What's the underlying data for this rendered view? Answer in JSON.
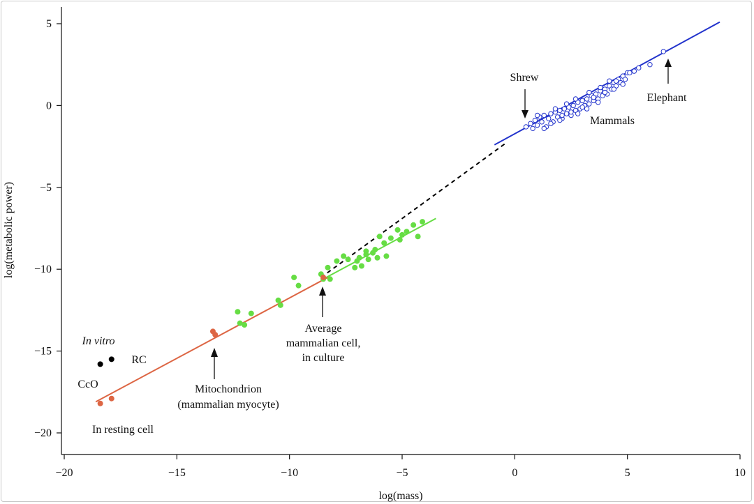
{
  "chart_data": {
    "type": "scatter",
    "title": "",
    "xlabel": "log(mass)",
    "ylabel": "log(metabolic power)",
    "xlim": [
      -20.5,
      10
    ],
    "ylim": [
      -21.3,
      5.7
    ],
    "x_ticks": [
      -20,
      -15,
      -10,
      -5,
      0,
      5,
      10
    ],
    "y_ticks": [
      5,
      0,
      -5,
      -10,
      -15,
      -20
    ],
    "x_tick_labels": [
      "−20",
      "−15",
      "−10",
      "−5",
      "0",
      "5",
      "10"
    ],
    "y_tick_labels": [
      "5",
      "0",
      "−5",
      "−10",
      "−15",
      "−20"
    ],
    "grid": false,
    "colors": {
      "mammals": "#2233cc",
      "cells": "#66dd44",
      "organelles": "#dd6644",
      "in_vitro": "#000000",
      "extrapolation": "#000000"
    },
    "series": [
      {
        "key": "mammals",
        "marker": "open-circle",
        "points": [
          [
            0.5,
            -1.3
          ],
          [
            0.7,
            -1.1
          ],
          [
            0.9,
            -0.9
          ],
          [
            1.0,
            -1.2
          ],
          [
            1.1,
            -0.7
          ],
          [
            1.2,
            -1.0
          ],
          [
            1.3,
            -0.6
          ],
          [
            1.4,
            -1.3
          ],
          [
            1.5,
            -0.8
          ],
          [
            1.6,
            -0.5
          ],
          [
            1.7,
            -1.0
          ],
          [
            1.8,
            -0.4
          ],
          [
            1.9,
            -0.7
          ],
          [
            2.0,
            -0.3
          ],
          [
            2.1,
            -0.8
          ],
          [
            2.2,
            -0.2
          ],
          [
            2.3,
            -0.5
          ],
          [
            2.4,
            -0.1
          ],
          [
            2.5,
            -0.6
          ],
          [
            2.6,
            0.0
          ],
          [
            2.7,
            -0.3
          ],
          [
            2.8,
            0.2
          ],
          [
            2.9,
            -0.2
          ],
          [
            3.0,
            0.3
          ],
          [
            3.1,
            0.0
          ],
          [
            3.2,
            0.4
          ],
          [
            3.3,
            0.1
          ],
          [
            3.4,
            0.6
          ],
          [
            3.5,
            0.3
          ],
          [
            3.6,
            0.7
          ],
          [
            3.7,
            0.4
          ],
          [
            3.8,
            0.9
          ],
          [
            3.9,
            0.6
          ],
          [
            4.0,
            1.0
          ],
          [
            4.1,
            0.7
          ],
          [
            4.2,
            1.2
          ],
          [
            4.3,
            1.0
          ],
          [
            4.4,
            1.4
          ],
          [
            4.5,
            1.2
          ],
          [
            4.6,
            1.6
          ],
          [
            4.7,
            1.4
          ],
          [
            4.8,
            1.8
          ],
          [
            4.9,
            1.6
          ],
          [
            5.0,
            2.0
          ],
          [
            5.1,
            2.0
          ],
          [
            5.3,
            2.1
          ],
          [
            5.5,
            2.3
          ],
          [
            6.0,
            2.5
          ],
          [
            6.6,
            3.3
          ],
          [
            1.3,
            -1.4
          ],
          [
            1.6,
            -1.1
          ],
          [
            2.0,
            -0.9
          ],
          [
            2.5,
            -0.4
          ],
          [
            3.0,
            -0.1
          ],
          [
            3.5,
            0.5
          ],
          [
            4.0,
            0.8
          ],
          [
            4.5,
            1.5
          ],
          [
            2.3,
            0.1
          ],
          [
            2.7,
            0.4
          ],
          [
            3.3,
            0.8
          ],
          [
            3.8,
            1.1
          ],
          [
            4.2,
            1.5
          ],
          [
            1.8,
            -0.2
          ],
          [
            2.8,
            -0.5
          ],
          [
            3.7,
            0.2
          ],
          [
            4.4,
            1.0
          ],
          [
            4.8,
            1.3
          ],
          [
            1.0,
            -0.6
          ],
          [
            0.8,
            -1.4
          ],
          [
            2.1,
            -0.6
          ],
          [
            3.2,
            -0.2
          ]
        ]
      },
      {
        "key": "cells",
        "marker": "filled-circle",
        "points": [
          [
            -12.3,
            -12.6
          ],
          [
            -12.2,
            -13.3
          ],
          [
            -12.0,
            -13.4
          ],
          [
            -11.7,
            -12.7
          ],
          [
            -10.5,
            -11.9
          ],
          [
            -10.4,
            -12.2
          ],
          [
            -9.8,
            -10.5
          ],
          [
            -9.6,
            -11.0
          ],
          [
            -8.6,
            -10.3
          ],
          [
            -8.5,
            -10.6
          ],
          [
            -8.3,
            -9.9
          ],
          [
            -8.2,
            -10.6
          ],
          [
            -7.9,
            -9.5
          ],
          [
            -7.6,
            -9.2
          ],
          [
            -7.4,
            -9.4
          ],
          [
            -7.1,
            -9.9
          ],
          [
            -6.9,
            -9.3
          ],
          [
            -6.8,
            -9.8
          ],
          [
            -6.6,
            -9.1
          ],
          [
            -6.5,
            -9.4
          ],
          [
            -6.2,
            -8.8
          ],
          [
            -6.1,
            -9.3
          ],
          [
            -5.8,
            -8.4
          ],
          [
            -5.7,
            -9.2
          ],
          [
            -5.2,
            -7.6
          ],
          [
            -5.1,
            -8.2
          ],
          [
            -4.8,
            -7.7
          ],
          [
            -4.5,
            -7.3
          ],
          [
            -4.3,
            -8.0
          ],
          [
            -4.1,
            -7.1
          ],
          [
            -6.3,
            -9.0
          ],
          [
            -5.5,
            -8.1
          ],
          [
            -6.6,
            -8.9
          ],
          [
            -7.0,
            -9.5
          ],
          [
            -6.0,
            -8.0
          ],
          [
            -5.0,
            -7.9
          ]
        ]
      },
      {
        "key": "organelles",
        "marker": "filled-circle",
        "points": [
          [
            -18.4,
            -18.2
          ],
          [
            -17.9,
            -17.9
          ],
          [
            -13.4,
            -13.8
          ],
          [
            -13.3,
            -14.0
          ],
          [
            -8.5,
            -10.5
          ]
        ]
      },
      {
        "key": "in_vitro",
        "marker": "filled-circle",
        "points": [
          [
            -18.4,
            -15.8
          ],
          [
            -17.9,
            -15.5
          ]
        ]
      }
    ],
    "fit_lines": [
      {
        "key": "mammals",
        "style": "solid",
        "from": [
          -0.9,
          -2.4
        ],
        "to": [
          9.1,
          5.1
        ]
      },
      {
        "key": "cells",
        "style": "solid",
        "from": [
          -8.5,
          -10.6
        ],
        "to": [
          -3.5,
          -6.9
        ]
      },
      {
        "key": "organelles",
        "style": "solid",
        "from": [
          -18.6,
          -18.1
        ],
        "to": [
          -8.3,
          -10.5
        ]
      },
      {
        "key": "extrapolation",
        "style": "dashed",
        "from": [
          -8.6,
          -10.5
        ],
        "to": [
          -0.4,
          -2.3
        ]
      }
    ],
    "annotations": {
      "shrew": "Shrew",
      "elephant": "Elephant",
      "mammals": "Mammals",
      "avg_cell": [
        "Average",
        "mammalian cell,",
        "in culture"
      ],
      "mito": [
        "Mitochondrion",
        "(mammalian myocyte)"
      ],
      "in_vitro": "In vitro",
      "rc": "RC",
      "cco": "CcO",
      "resting": "In resting cell"
    }
  }
}
